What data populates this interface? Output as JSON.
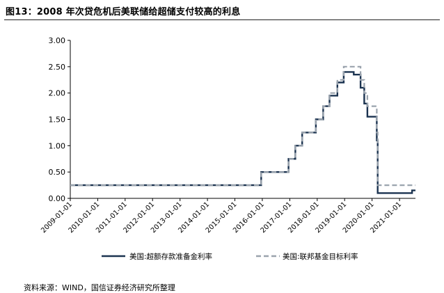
{
  "title": "图13：2008 年次贷危机后美联储给超储支付较高的利息",
  "source": "资料来源：WIND，国信证券经济研究所整理",
  "chart_data": {
    "type": "line",
    "title": "图13：2008 年次贷危机后美联储给超储支付较高的利息",
    "xlabel": "",
    "ylabel": "",
    "ylim": [
      0,
      3
    ],
    "yticks": [
      "0.00",
      "0.50",
      "1.00",
      "1.50",
      "2.00",
      "2.50",
      "3.00"
    ],
    "xtick_labels": [
      "2009-01-01",
      "2010-01-01",
      "2011-01-01",
      "2012-01-01",
      "2013-01-01",
      "2014-01-01",
      "2015-01-01",
      "2016-01-01",
      "2017-01-01",
      "2018-01-01",
      "2019-01-01",
      "2020-01-01",
      "2021-01-01"
    ],
    "xlim": [
      "2009-01-01",
      "2021-08-01"
    ],
    "grid": false,
    "legend": "bottom",
    "series": [
      {
        "name": "美国:超额存款准备金利率",
        "color": "#1b3350",
        "style": "solid",
        "x": [
          "2009-01-01",
          "2015-12-17",
          "2016-12-15",
          "2017-03-16",
          "2017-06-15",
          "2017-12-14",
          "2018-03-22",
          "2018-06-14",
          "2018-09-27",
          "2018-12-20",
          "2019-05-02",
          "2019-08-01",
          "2019-09-19",
          "2019-10-31",
          "2020-03-04",
          "2020-03-16",
          "2021-06-17",
          "2021-08-01"
        ],
        "y": [
          0.25,
          0.5,
          0.75,
          1.0,
          1.25,
          1.5,
          1.75,
          1.95,
          2.2,
          2.4,
          2.35,
          2.1,
          1.8,
          1.55,
          1.1,
          0.1,
          0.15,
          0.15
        ]
      },
      {
        "name": "美国:联邦基金目标利率",
        "color": "#9aa3ad",
        "style": "dashed",
        "x": [
          "2009-01-01",
          "2015-12-17",
          "2016-12-15",
          "2017-03-16",
          "2017-06-15",
          "2017-12-14",
          "2018-03-22",
          "2018-06-14",
          "2018-09-27",
          "2018-12-20",
          "2019-08-01",
          "2019-09-19",
          "2019-10-31",
          "2020-03-04",
          "2020-03-16",
          "2021-08-01"
        ],
        "y": [
          0.25,
          0.5,
          0.75,
          1.0,
          1.25,
          1.5,
          1.75,
          2.0,
          2.25,
          2.5,
          2.25,
          2.0,
          1.75,
          1.25,
          0.25,
          0.25
        ]
      }
    ]
  }
}
